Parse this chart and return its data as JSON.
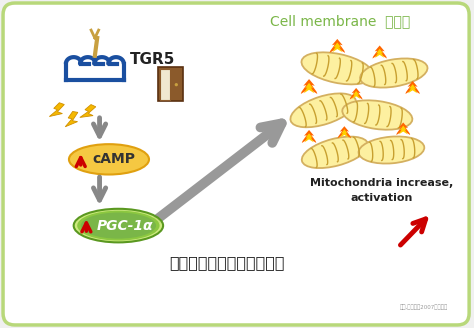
{
  "bg_color": "#f0f0f0",
  "cell_bg": "#ffffff",
  "cell_border_color": "#b8d87a",
  "title_text": "Cell membrane  細胞膜",
  "title_color": "#7ab648",
  "title_fontsize": 10,
  "tgr5_text": "TGR5",
  "camp_text": "cAMP",
  "pgc_text": "PGC-1α",
  "mito_text1": "Mitochondria increase,",
  "mito_text2": "activation",
  "mito_color": "#222222",
  "chinese_text": "粒線體數量增加，且被活化",
  "chinese_color": "#222222",
  "footnote": "渡辺,臨床化学2007より改編",
  "figsize": [
    4.74,
    3.28
  ],
  "dpi": 100
}
